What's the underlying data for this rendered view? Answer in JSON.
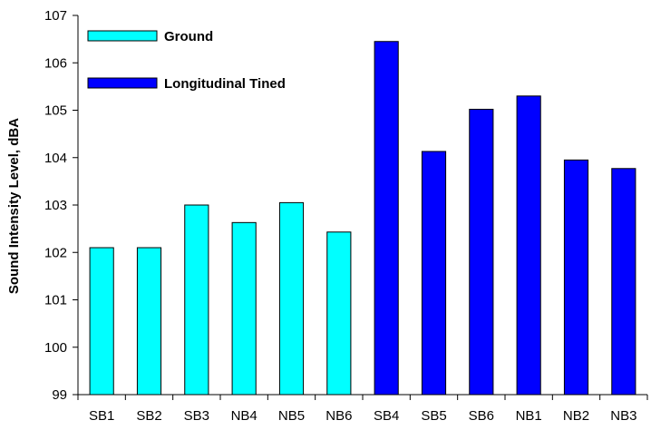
{
  "chart_data": {
    "type": "bar",
    "ylabel": "Sound Intensity Level, dBA",
    "xlabel": "",
    "ylim": [
      99,
      107
    ],
    "yticks": [
      99,
      100,
      101,
      102,
      103,
      104,
      105,
      106,
      107
    ],
    "grid": false,
    "legend_position": "top-left",
    "categories": [
      "SB1",
      "SB2",
      "SB3",
      "NB4",
      "NB5",
      "NB6",
      "SB4",
      "SB5",
      "SB6",
      "NB1",
      "NB2",
      "NB3"
    ],
    "series": [
      {
        "name": "Ground",
        "color": "#00ffff",
        "values": [
          102.1,
          102.1,
          103.0,
          102.63,
          103.05,
          102.43,
          null,
          null,
          null,
          null,
          null,
          null
        ]
      },
      {
        "name": "Longitudinal Tined",
        "color": "#0000ff",
        "values": [
          null,
          null,
          null,
          null,
          null,
          null,
          106.45,
          104.13,
          105.02,
          105.3,
          103.95,
          103.77
        ]
      }
    ]
  }
}
